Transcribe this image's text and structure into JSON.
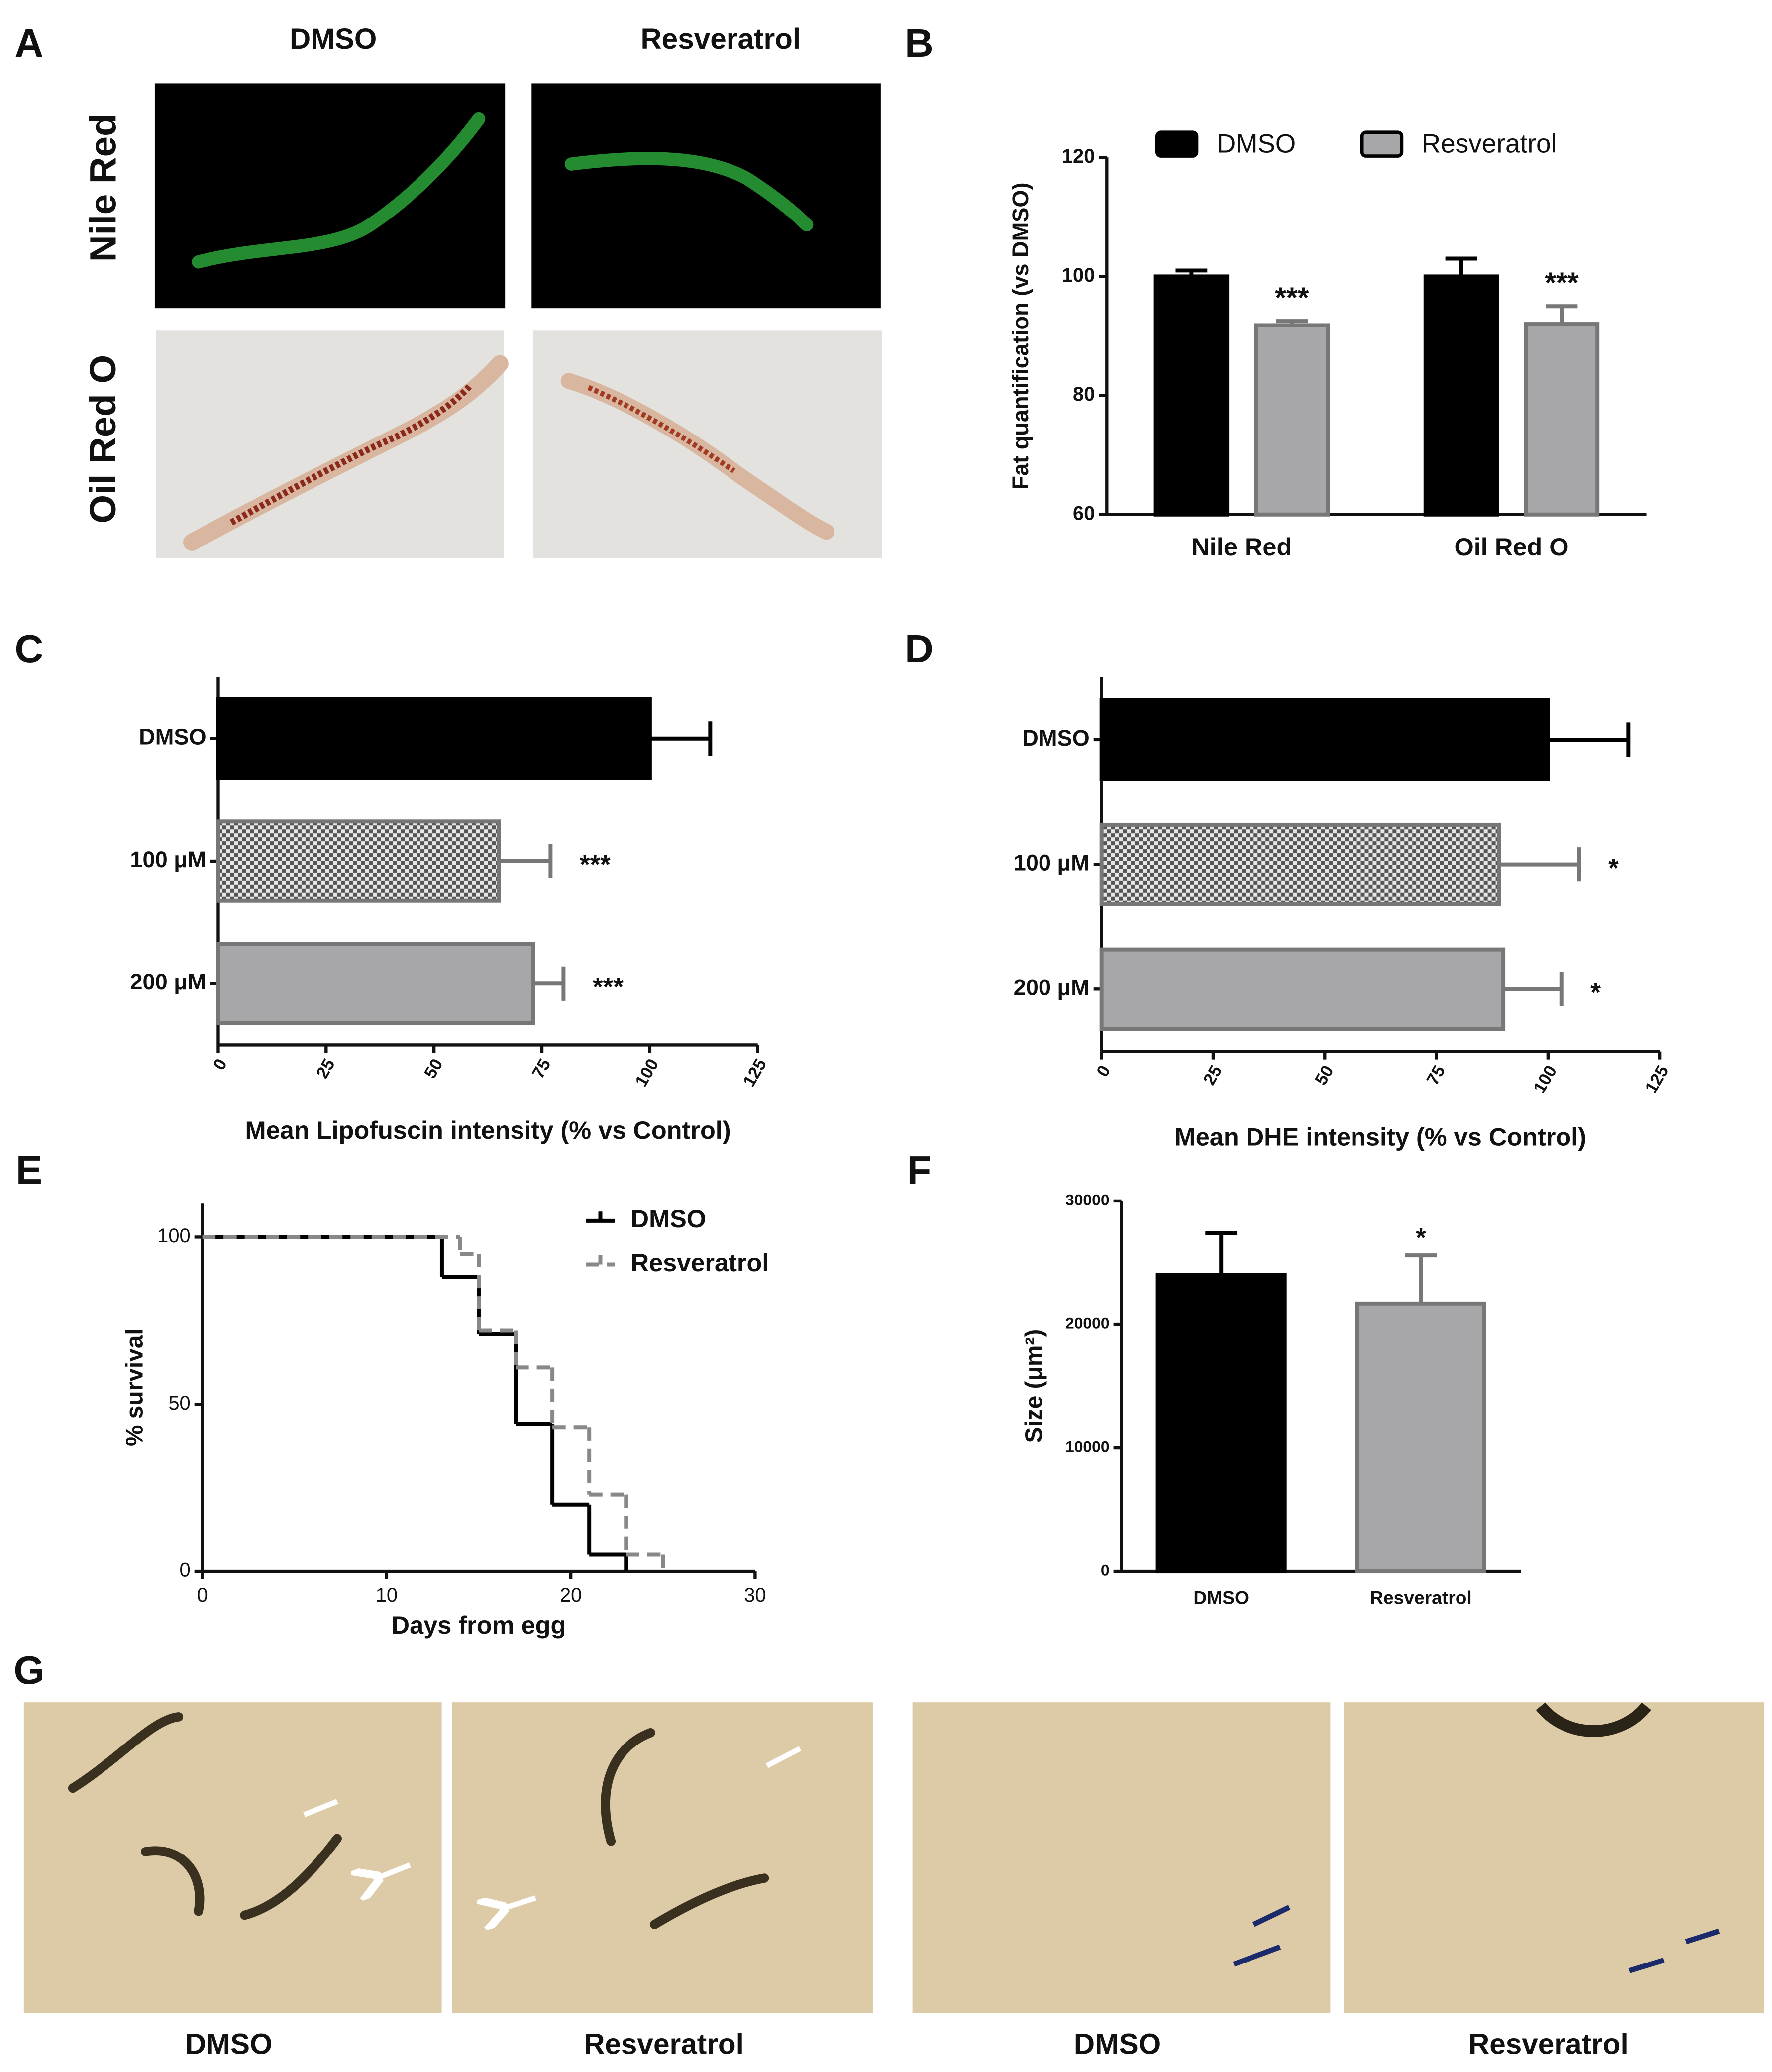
{
  "panel_letters": [
    "A",
    "B",
    "C",
    "D",
    "E",
    "F",
    "G"
  ],
  "panel_a": {
    "columns": [
      "DMSO",
      "Resveratrol"
    ],
    "rows": [
      "Nile Red",
      "Oil Red O"
    ]
  },
  "panel_g": {
    "labels": [
      "DMSO",
      "Resveratrol",
      "DMSO",
      "Resveratrol"
    ]
  },
  "chart_data": [
    {
      "type": "bar",
      "ylabel": "Fat quantification (vs DMSO)",
      "categories": [
        "Nile Red",
        "Oil Red O"
      ],
      "series": [
        {
          "name": "DMSO",
          "color": "#000000",
          "values": [
            100,
            100
          ],
          "errors": [
            1,
            3
          ]
        },
        {
          "name": "Resveratrol",
          "color": "#a7a7aa",
          "values": [
            91.8,
            92
          ],
          "errors": [
            0.7,
            3
          ],
          "annotations": [
            "***",
            "***"
          ]
        }
      ],
      "ylim": [
        60,
        120
      ],
      "yticks": [
        60,
        80,
        100,
        120
      ],
      "legend": "top"
    },
    {
      "type": "hbar",
      "xlabel": "Mean Lipofuscin intensity (% vs Control)",
      "categories": [
        "DMSO",
        "100 μM",
        "200 μM"
      ],
      "values": [
        100,
        65,
        73
      ],
      "errors": [
        14,
        12,
        7
      ],
      "annotations": [
        null,
        "***",
        "***"
      ],
      "colors": [
        "#000000",
        "#777777",
        "#a7a7aa"
      ],
      "patterns": [
        "solid",
        "checkered",
        "solid"
      ],
      "xlim": [
        0,
        125
      ],
      "xticks": [
        0,
        25,
        50,
        75,
        100,
        125
      ]
    },
    {
      "type": "hbar",
      "xlabel": "Mean DHE intensity (% vs Control)",
      "categories": [
        "DMSO",
        "100 μM",
        "200 μM"
      ],
      "values": [
        100,
        89,
        90
      ],
      "errors": [
        18,
        18,
        13
      ],
      "annotations": [
        null,
        "*",
        "*"
      ],
      "colors": [
        "#000000",
        "#777777",
        "#a7a7aa"
      ],
      "patterns": [
        "solid",
        "checkered",
        "solid"
      ],
      "xlim": [
        0,
        125
      ],
      "xticks": [
        0,
        25,
        50,
        75,
        100,
        125
      ]
    },
    {
      "type": "line",
      "step": true,
      "xlabel": "Days from egg",
      "ylabel": "% survival",
      "series": [
        {
          "name": "DMSO",
          "color": "#000000",
          "dash": false,
          "x": [
            0,
            13,
            15,
            17,
            19,
            21,
            23
          ],
          "values": [
            100,
            88,
            71,
            44,
            20,
            5,
            0
          ]
        },
        {
          "name": "Resveratrol",
          "color": "#888888",
          "dash": true,
          "x": [
            0,
            14,
            15,
            17,
            19,
            21,
            23,
            25
          ],
          "values": [
            100,
            95,
            72,
            61,
            43,
            23,
            5,
            0
          ]
        }
      ],
      "xlim": [
        0,
        30
      ],
      "xticks": [
        0,
        10,
        20,
        30
      ],
      "ylim": [
        0,
        110
      ],
      "yticks": [
        0,
        50,
        100
      ],
      "legend": "top-right"
    },
    {
      "type": "bar",
      "ylabel": "Size (μm²)",
      "categories": [
        "DMSO",
        "Resveratrol"
      ],
      "values": [
        24000,
        21700
      ],
      "errors": [
        3400,
        3900
      ],
      "annotations": [
        null,
        "*"
      ],
      "colors": [
        "#000000",
        "#a7a7aa"
      ],
      "ylim": [
        0,
        30000
      ],
      "yticks": [
        0,
        10000,
        20000,
        30000
      ]
    }
  ]
}
